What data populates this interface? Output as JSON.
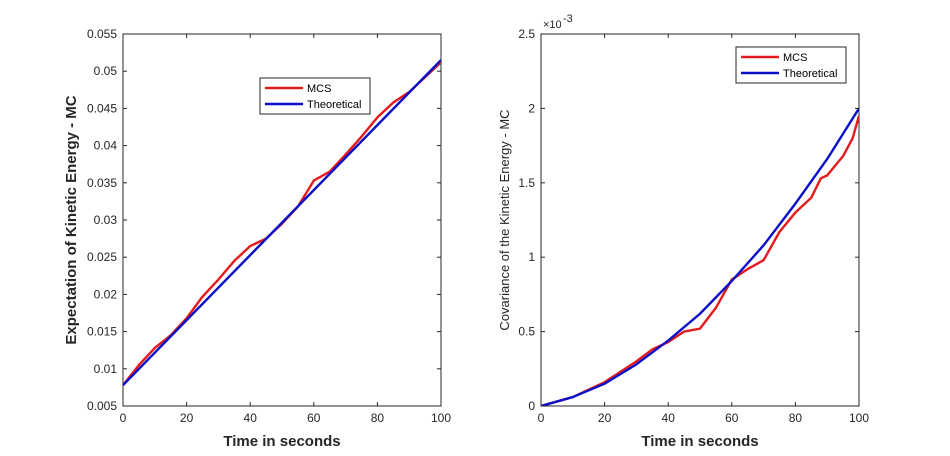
{
  "chart_data": [
    {
      "type": "line",
      "xlabel": "Time in seconds",
      "ylabel": "Expectation of Kinetic Energy - MC",
      "xlim": [
        0,
        100
      ],
      "ylim": [
        0.005,
        0.055
      ],
      "xticks": [
        0,
        20,
        40,
        60,
        80,
        100
      ],
      "xtick_labels": [
        "0",
        "20",
        "40",
        "60",
        "80",
        "100"
      ],
      "yticks": [
        0.005,
        0.01,
        0.015,
        0.02,
        0.025,
        0.03,
        0.035,
        0.04,
        0.045,
        0.05,
        0.055
      ],
      "ytick_labels": [
        "0.005",
        "0.01",
        "0.015",
        "0.02",
        "0.025",
        "0.03",
        "0.035",
        "0.04",
        "0.045",
        "0.05",
        "0.055"
      ],
      "legend_position": "upper-center-right",
      "series": [
        {
          "name": "MCS",
          "color": "#e41a1c",
          "x": [
            0,
            5,
            10,
            15,
            20,
            25,
            30,
            35,
            40,
            45,
            50,
            55,
            60,
            65,
            70,
            75,
            80,
            85,
            90,
            95,
            100
          ],
          "y": [
            0.0078,
            0.0105,
            0.0128,
            0.0145,
            0.0168,
            0.0197,
            0.022,
            0.0245,
            0.0265,
            0.0275,
            0.0295,
            0.0318,
            0.0353,
            0.0365,
            0.0388,
            0.0412,
            0.0438,
            0.0458,
            0.0472,
            0.0492,
            0.0512
          ]
        },
        {
          "name": "Theoretical",
          "color": "#0a10c8",
          "x": [
            0,
            100
          ],
          "y": [
            0.0078,
            0.0515
          ]
        }
      ]
    },
    {
      "type": "line",
      "xlabel": "Time in seconds",
      "ylabel": "Covariance of the Kinetic Energy - MC",
      "axis_multiplier": "×10",
      "axis_multiplier_exp": "-3",
      "xlim": [
        0,
        100
      ],
      "ylim": [
        0,
        2.5
      ],
      "xticks": [
        0,
        20,
        40,
        60,
        80,
        100
      ],
      "xtick_labels": [
        "0",
        "20",
        "40",
        "60",
        "80",
        "100"
      ],
      "yticks": [
        0,
        0.5,
        1,
        1.5,
        2,
        2.5
      ],
      "ytick_labels": [
        "0",
        "0.5",
        "1",
        "1.5",
        "2",
        "2.5"
      ],
      "legend_position": "top-right",
      "series": [
        {
          "name": "MCS",
          "color": "#e41a1c",
          "x": [
            0,
            10,
            20,
            30,
            35,
            40,
            45,
            50,
            55,
            60,
            65,
            70,
            75,
            80,
            85,
            88,
            90,
            95,
            98,
            100
          ],
          "y": [
            0,
            0.06,
            0.16,
            0.3,
            0.38,
            0.43,
            0.5,
            0.52,
            0.66,
            0.85,
            0.92,
            0.98,
            1.17,
            1.3,
            1.4,
            1.53,
            1.55,
            1.68,
            1.8,
            1.95
          ]
        },
        {
          "name": "Theoretical",
          "color": "#0a10c8",
          "x": [
            0,
            10,
            20,
            30,
            40,
            50,
            60,
            70,
            80,
            90,
            100
          ],
          "y": [
            0,
            0.06,
            0.15,
            0.28,
            0.44,
            0.62,
            0.84,
            1.08,
            1.36,
            1.66,
            2.0
          ]
        }
      ]
    }
  ]
}
